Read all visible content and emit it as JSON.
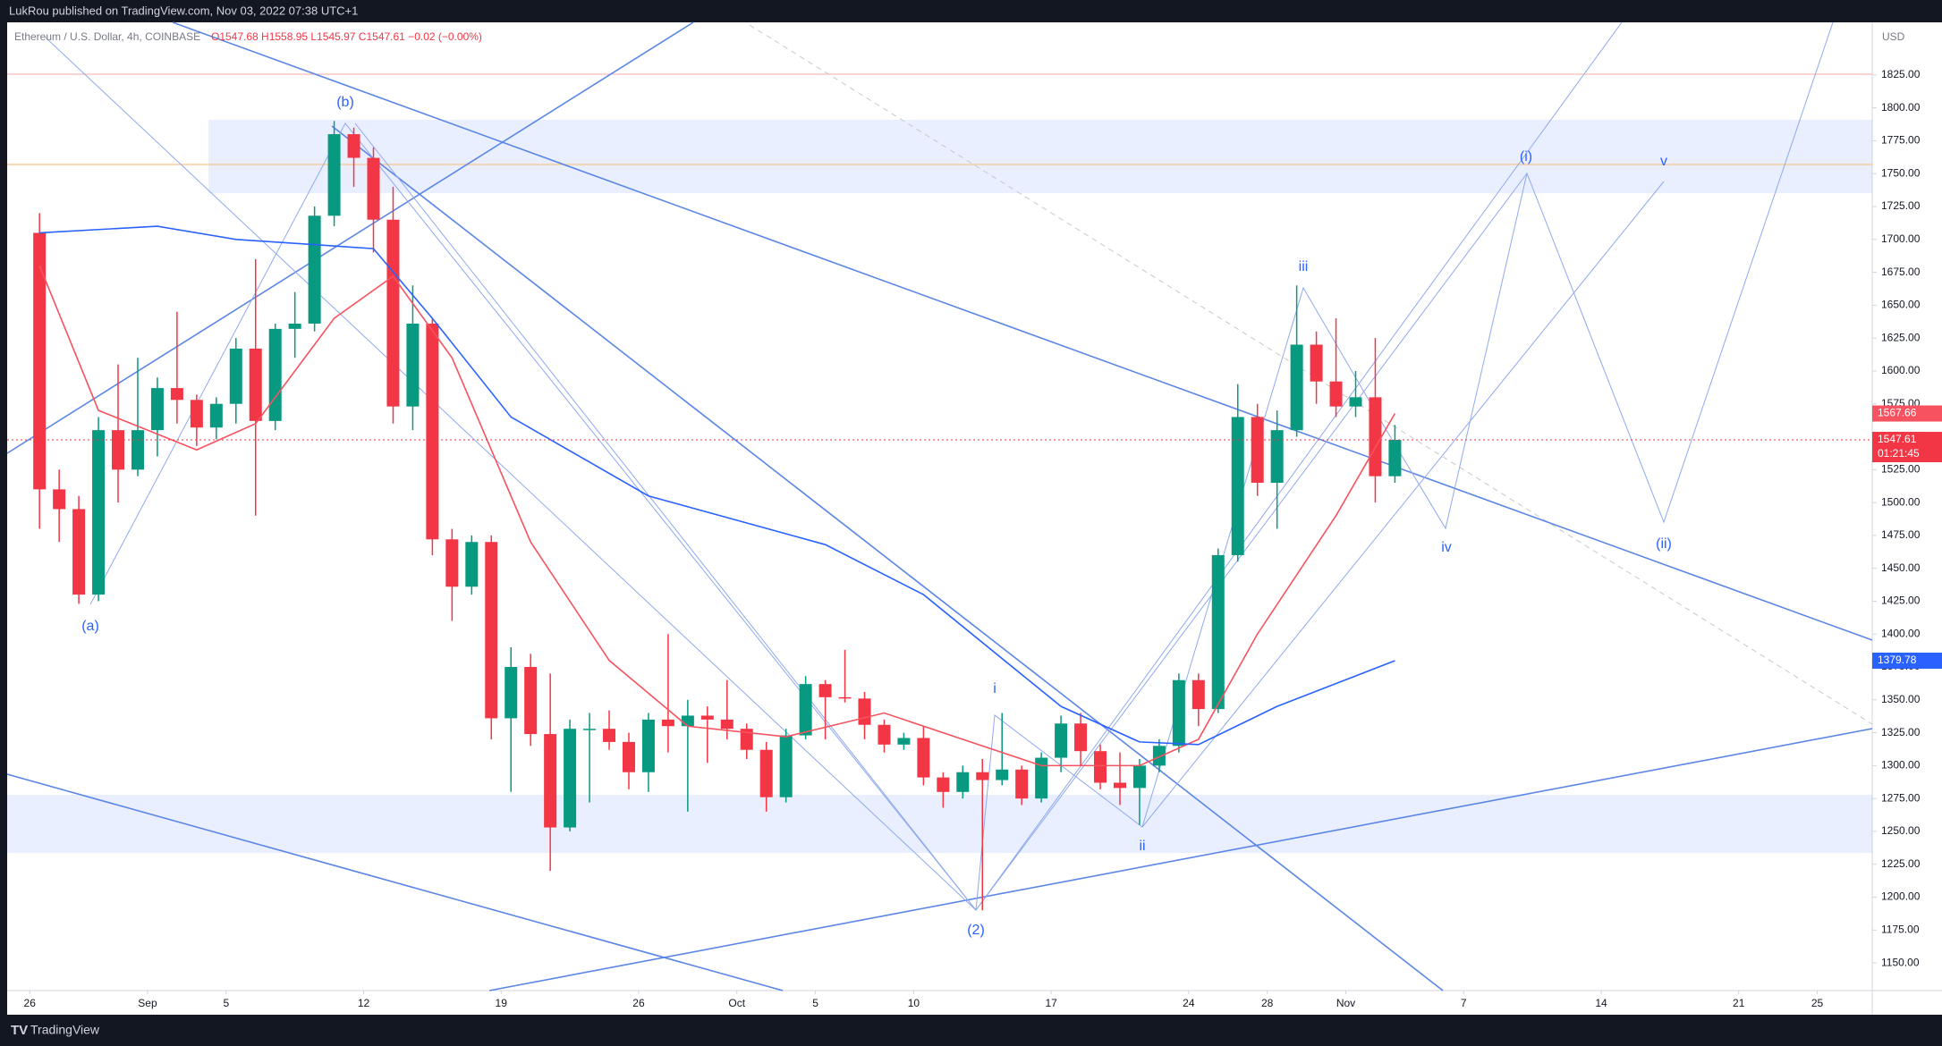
{
  "header": {
    "publisher": "LukRou published on TradingView.com, Nov 03, 2022 07:38 UTC+1",
    "symbol": "Ethereum / U.S. Dollar, 4h, COINBASE",
    "ohlc": "O1547.68 H1558.95 L1545.97 C1547.61 −0.02 (−0.00%)",
    "currency": "USD"
  },
  "footer": {
    "brand": "TradingView"
  },
  "chart_data": {
    "type": "candlestick",
    "x": [
      "Aug 26",
      "Aug 27",
      "Aug 28",
      "Aug 29",
      "Aug 30",
      "Aug 31",
      "Sep 1",
      "Sep 2",
      "Sep 3",
      "Sep 4",
      "Sep 5",
      "Sep 6",
      "Sep 7",
      "Sep 8",
      "Sep 9",
      "Sep 10",
      "Sep 11",
      "Sep 12",
      "Sep 13",
      "Sep 14",
      "Sep 15",
      "Sep 16",
      "Sep 17",
      "Sep 18",
      "Sep 19",
      "Sep 20",
      "Sep 21",
      "Sep 22",
      "Sep 23",
      "Sep 24",
      "Sep 25",
      "Sep 26",
      "Sep 27",
      "Sep 28",
      "Sep 29",
      "Sep 30",
      "Oct 1",
      "Oct 2",
      "Oct 3",
      "Oct 4",
      "Oct 5",
      "Oct 6",
      "Oct 7",
      "Oct 8",
      "Oct 9",
      "Oct 10",
      "Oct 11",
      "Oct 12",
      "Oct 13",
      "Oct 14",
      "Oct 15",
      "Oct 16",
      "Oct 17",
      "Oct 18",
      "Oct 19",
      "Oct 20",
      "Oct 21",
      "Oct 22",
      "Oct 23",
      "Oct 24",
      "Oct 25",
      "Oct 26",
      "Oct 27",
      "Oct 28",
      "Oct 29",
      "Oct 30",
      "Oct 31",
      "Nov 1",
      "Nov 2",
      "Nov 3"
    ],
    "open": [
      1705,
      1510,
      1495,
      1430,
      1555,
      1525,
      1555,
      1587,
      1578,
      1557,
      1575,
      1617,
      1562,
      1632,
      1636,
      1718,
      1780,
      1762,
      1715,
      1573,
      1636,
      1472,
      1436,
      1470,
      1336,
      1375,
      1324,
      1253,
      1328,
      1328,
      1318,
      1295,
      1335,
      1330,
      1338,
      1335,
      1328,
      1312,
      1276,
      1323,
      1362,
      1352,
      1351,
      1331,
      1316,
      1321,
      1291,
      1280,
      1295,
      1289,
      1297,
      1275,
      1306,
      1332,
      1311,
      1287,
      1283,
      1300,
      1315,
      1365,
      1343,
      1460,
      1565,
      1515,
      1555,
      1620,
      1592,
      1573,
      1580,
      1520
    ],
    "high": [
      1720,
      1525,
      1505,
      1565,
      1605,
      1610,
      1595,
      1645,
      1582,
      1580,
      1625,
      1685,
      1636,
      1660,
      1725,
      1790,
      1785,
      1770,
      1740,
      1665,
      1640,
      1480,
      1475,
      1475,
      1390,
      1385,
      1370,
      1335,
      1340,
      1342,
      1325,
      1340,
      1400,
      1350,
      1345,
      1365,
      1332,
      1318,
      1328,
      1368,
      1365,
      1388,
      1356,
      1335,
      1325,
      1330,
      1295,
      1300,
      1305,
      1340,
      1300,
      1310,
      1338,
      1340,
      1316,
      1310,
      1305,
      1320,
      1370,
      1370,
      1465,
      1590,
      1575,
      1570,
      1665,
      1630,
      1640,
      1600,
      1625,
      1558.95
    ],
    "low": [
      1480,
      1470,
      1423,
      1425,
      1500,
      1520,
      1535,
      1560,
      1543,
      1548,
      1560,
      1490,
      1555,
      1610,
      1630,
      1710,
      1740,
      1690,
      1560,
      1555,
      1460,
      1410,
      1430,
      1320,
      1280,
      1315,
      1220,
      1250,
      1272,
      1312,
      1282,
      1280,
      1310,
      1265,
      1302,
      1320,
      1305,
      1265,
      1272,
      1320,
      1320,
      1348,
      1320,
      1310,
      1312,
      1285,
      1268,
      1275,
      1190,
      1285,
      1270,
      1272,
      1295,
      1300,
      1282,
      1270,
      1255,
      1295,
      1310,
      1330,
      1340,
      1455,
      1505,
      1480,
      1550,
      1575,
      1565,
      1565,
      1500,
      1515
    ],
    "close": [
      1510,
      1495,
      1430,
      1555,
      1525,
      1555,
      1587,
      1578,
      1557,
      1575,
      1617,
      1562,
      1632,
      1636,
      1718,
      1780,
      1762,
      1715,
      1573,
      1636,
      1472,
      1436,
      1470,
      1336,
      1375,
      1324,
      1253,
      1328,
      1328,
      1318,
      1295,
      1335,
      1330,
      1338,
      1335,
      1328,
      1312,
      1276,
      1323,
      1362,
      1352,
      1351,
      1331,
      1316,
      1321,
      1291,
      1280,
      1295,
      1289,
      1297,
      1275,
      1306,
      1332,
      1311,
      1287,
      1283,
      1300,
      1315,
      1365,
      1343,
      1460,
      1565,
      1515,
      1555,
      1620,
      1592,
      1573,
      1580,
      1520,
      1547.61
    ],
    "up_color": "#089981",
    "down_color": "#f23645",
    "series": [
      {
        "color": "#f7525f",
        "x": [
          "Aug 26",
          "Aug 29",
          "Sep 3",
          "Sep 6",
          "Sep 10",
          "Sep 13",
          "Sep 16",
          "Sep 20",
          "Sep 24",
          "Sep 28",
          "Oct 3",
          "Oct 8",
          "Oct 12",
          "Oct 16",
          "Oct 21",
          "Oct 24",
          "Oct 27",
          "Oct 31",
          "Nov 3"
        ],
        "values": [
          1680,
          1570,
          1540,
          1560,
          1640,
          1672,
          1610,
          1470,
          1380,
          1330,
          1322,
          1340,
          1320,
          1300,
          1300,
          1320,
          1400,
          1490,
          1567.66
        ]
      },
      {
        "color": "#2962ff",
        "x": [
          "Aug 26",
          "Sep 1",
          "Sep 5",
          "Sep 12",
          "Sep 15",
          "Sep 19",
          "Sep 26",
          "Oct 5",
          "Oct 10",
          "Oct 17",
          "Oct 21",
          "Oct 24",
          "Oct 28",
          "Nov 3"
        ],
        "values": [
          1705,
          1710,
          1700,
          1693,
          1640,
          1565,
          1505,
          1468,
          1430,
          1345,
          1318,
          1316,
          1345,
          1379.78
        ]
      }
    ],
    "ylim": [
      1129,
      1865
    ],
    "yticks": [
      {
        "value": 1150,
        "label": "1150.00"
      },
      {
        "value": 1175,
        "label": "1175.00"
      },
      {
        "value": 1200,
        "label": "1200.00"
      },
      {
        "value": 1225,
        "label": "1225.00"
      },
      {
        "value": 1250,
        "label": "1250.00"
      },
      {
        "value": 1275,
        "label": "1275.00"
      },
      {
        "value": 1300,
        "label": "1300.00"
      },
      {
        "value": 1325,
        "label": "1325.00"
      },
      {
        "value": 1350,
        "label": "1350.00"
      },
      {
        "value": 1375,
        "label": "1375.00"
      },
      {
        "value": 1400,
        "label": "1400.00"
      },
      {
        "value": 1425,
        "label": "1425.00"
      },
      {
        "value": 1450,
        "label": "1450.00"
      },
      {
        "value": 1475,
        "label": "1475.00"
      },
      {
        "value": 1500,
        "label": "1500.00"
      },
      {
        "value": 1525,
        "label": "1525.00"
      },
      {
        "value": 1550,
        "label": "1550.00"
      },
      {
        "value": 1575,
        "label": "1575.00"
      },
      {
        "value": 1600,
        "label": "1600.00"
      },
      {
        "value": 1625,
        "label": "1625.00"
      },
      {
        "value": 1650,
        "label": "1650.00"
      },
      {
        "value": 1675,
        "label": "1675.00"
      },
      {
        "value": 1700,
        "label": "1700.00"
      },
      {
        "value": 1725,
        "label": "1725.00"
      },
      {
        "value": 1750,
        "label": "1750.00"
      },
      {
        "value": 1775,
        "label": "1775.00"
      },
      {
        "value": 1800,
        "label": "1800.00"
      },
      {
        "value": 1825,
        "label": "1825.00"
      }
    ],
    "xticks": [
      {
        "value": "Aug 26",
        "label": "26"
      },
      {
        "value": "Sep 1",
        "label": "Sep"
      },
      {
        "value": "Sep 5",
        "label": "5"
      },
      {
        "value": "Sep 12",
        "label": "12"
      },
      {
        "value": "Sep 19",
        "label": "19"
      },
      {
        "value": "Sep 26",
        "label": "26"
      },
      {
        "value": "Oct 1",
        "label": "Oct"
      },
      {
        "value": "Oct 5",
        "label": "5"
      },
      {
        "value": "Oct 10",
        "label": "10"
      },
      {
        "value": "Oct 17",
        "label": "17"
      },
      {
        "value": "Oct 24",
        "label": "24"
      },
      {
        "value": "Oct 28",
        "label": "28"
      },
      {
        "value": "Nov 1",
        "label": "Nov"
      },
      {
        "value": "Nov 7",
        "label": "7"
      },
      {
        "value": "Nov 14",
        "label": "14"
      },
      {
        "value": "Nov 21",
        "label": "21"
      },
      {
        "value": "Nov 25",
        "label": "25"
      }
    ],
    "countdown": "01:21:45",
    "annotations": [
      "(b)",
      "(a)",
      "(2)",
      "i",
      "ii",
      "iii",
      "iv",
      "v",
      "(i)",
      "(ii)"
    ]
  }
}
